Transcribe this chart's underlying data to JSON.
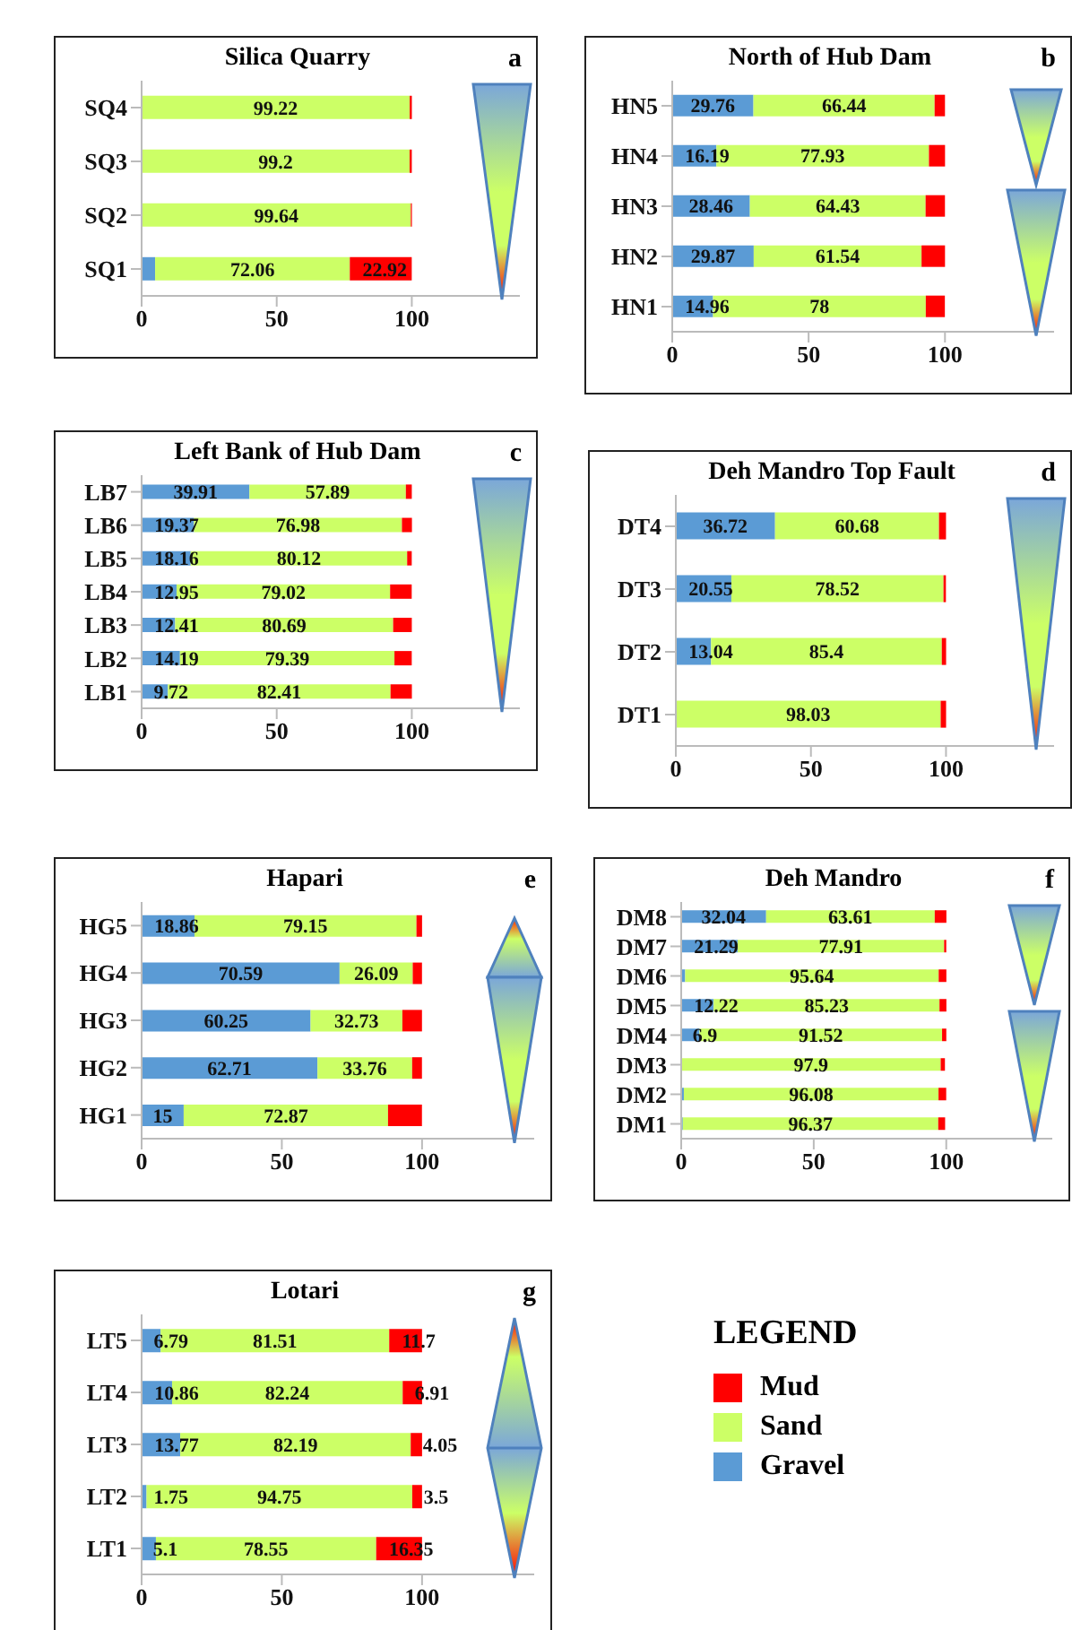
{
  "chart_data": [
    {
      "type": "bar",
      "orientation": "horizontal",
      "stacked": true,
      "title": "Silica Quarry",
      "annotations": [
        "a"
      ],
      "categories": [
        "SQ4",
        "SQ3",
        "SQ2",
        "SQ1"
      ],
      "xlim": [
        0,
        140
      ],
      "xticks": [
        0,
        50,
        100
      ],
      "series": [
        {
          "color": "#5b9bd5",
          "values": [
            0,
            0,
            0,
            5
          ],
          "value_labels": [
            null,
            null,
            null,
            null
          ]
        },
        {
          "color": "#ccff66",
          "values": [
            99.22,
            99.2,
            99.64,
            72.06
          ],
          "value_labels": [
            "99.22",
            "99.2",
            "99.64",
            "72.06"
          ]
        },
        {
          "color": "#ff0000",
          "values": [
            0.8,
            0.8,
            0.4,
            22.92
          ],
          "value_labels": [
            null,
            null,
            null,
            "22.92"
          ]
        }
      ]
    },
    {
      "type": "bar",
      "orientation": "horizontal",
      "stacked": true,
      "title": "North of Hub Dam",
      "annotations": [
        "b"
      ],
      "categories": [
        "HN5",
        "HN4",
        "HN3",
        "HN2",
        "HN1"
      ],
      "xlim": [
        0,
        140
      ],
      "xticks": [
        0,
        50,
        100
      ],
      "series": [
        {
          "color": "#5b9bd5",
          "values": [
            29.76,
            16.19,
            28.46,
            29.87,
            14.96
          ],
          "value_labels": [
            "29.76",
            "16.19",
            "28.46",
            "29.87",
            "14.96"
          ]
        },
        {
          "color": "#ccff66",
          "values": [
            66.44,
            77.93,
            64.43,
            61.54,
            78
          ],
          "value_labels": [
            "66.44",
            "77.93",
            "64.43",
            "61.54",
            "78"
          ]
        },
        {
          "color": "#ff0000",
          "values": [
            3.8,
            5.9,
            7.1,
            8.6,
            7
          ],
          "value_labels": [
            null,
            null,
            null,
            null,
            null
          ]
        }
      ]
    },
    {
      "type": "bar",
      "orientation": "horizontal",
      "stacked": true,
      "title": "Left Bank of Hub Dam",
      "annotations": [
        "c"
      ],
      "categories": [
        "LB7",
        "LB6",
        "LB5",
        "LB4",
        "LB3",
        "LB2",
        "LB1"
      ],
      "xlim": [
        0,
        140
      ],
      "xticks": [
        0,
        50,
        100
      ],
      "series": [
        {
          "color": "#5b9bd5",
          "values": [
            39.91,
            19.37,
            18.16,
            12.95,
            12.41,
            14.19,
            9.72
          ],
          "value_labels": [
            "39.91",
            "19.37",
            "18.16",
            "12.95",
            "12.41",
            "14.19",
            "9.72"
          ]
        },
        {
          "color": "#ccff66",
          "values": [
            57.89,
            76.98,
            80.12,
            79.02,
            80.69,
            79.39,
            82.41
          ],
          "value_labels": [
            "57.89",
            "76.98",
            "80.12",
            "79.02",
            "80.69",
            "79.39",
            "82.41"
          ]
        },
        {
          "color": "#ff0000",
          "values": [
            2.2,
            3.7,
            1.7,
            8,
            6.9,
            6.4,
            7.9
          ],
          "value_labels": [
            null,
            null,
            null,
            null,
            null,
            null,
            null
          ]
        }
      ]
    },
    {
      "type": "bar",
      "orientation": "horizontal",
      "stacked": true,
      "title": "Deh Mandro Top Fault",
      "annotations": [
        "d"
      ],
      "categories": [
        "DT4",
        "DT3",
        "DT2",
        "DT1"
      ],
      "xlim": [
        0,
        140
      ],
      "xticks": [
        0,
        50,
        100
      ],
      "series": [
        {
          "color": "#5b9bd5",
          "values": [
            36.72,
            20.55,
            13.04,
            0
          ],
          "value_labels": [
            "36.72",
            "20.55",
            "13.04",
            null
          ]
        },
        {
          "color": "#ccff66",
          "values": [
            60.68,
            78.52,
            85.4,
            98.03
          ],
          "value_labels": [
            "60.68",
            "78.52",
            "85.4",
            "98.03"
          ]
        },
        {
          "color": "#ff0000",
          "values": [
            2.6,
            0.9,
            1.6,
            2
          ],
          "value_labels": [
            null,
            null,
            null,
            null
          ]
        }
      ]
    },
    {
      "type": "bar",
      "orientation": "horizontal",
      "stacked": true,
      "title": "Hapari",
      "annotations": [
        "e"
      ],
      "categories": [
        "HG5",
        "HG4",
        "HG3",
        "HG2",
        "HG1"
      ],
      "xlim": [
        0,
        140
      ],
      "xticks": [
        0,
        50,
        100
      ],
      "series": [
        {
          "color": "#5b9bd5",
          "values": [
            18.86,
            70.59,
            60.25,
            62.71,
            15
          ],
          "value_labels": [
            "18.86",
            "70.59",
            "60.25",
            "62.71",
            "15"
          ]
        },
        {
          "color": "#ccff66",
          "values": [
            79.15,
            26.09,
            32.73,
            33.76,
            72.87
          ],
          "value_labels": [
            "79.15",
            "26.09",
            "32.73",
            "33.76",
            "72.87"
          ]
        },
        {
          "color": "#ff0000",
          "values": [
            2,
            3.3,
            7,
            3.5,
            12.1
          ],
          "value_labels": [
            null,
            null,
            null,
            null,
            null
          ]
        }
      ]
    },
    {
      "type": "bar",
      "orientation": "horizontal",
      "stacked": true,
      "title": "Deh Mandro",
      "annotations": [
        "f"
      ],
      "categories": [
        "DM8",
        "DM7",
        "DM6",
        "DM5",
        "DM4",
        "DM3",
        "DM2",
        "DM1"
      ],
      "xlim": [
        0,
        140
      ],
      "xticks": [
        0,
        50,
        100
      ],
      "series": [
        {
          "color": "#5b9bd5",
          "values": [
            32.04,
            21.29,
            1.5,
            12.22,
            6.9,
            null,
            1,
            0.6
          ],
          "value_labels": [
            "32.04",
            "21.29",
            null,
            "12.22",
            "6.9",
            null,
            null,
            null
          ]
        },
        {
          "color": "#ccff66",
          "values": [
            63.61,
            77.91,
            95.64,
            85.23,
            91.52,
            97.9,
            96.08,
            96.37
          ],
          "value_labels": [
            "63.61",
            "77.91",
            "95.64",
            "85.23",
            "91.52",
            "97.9",
            "96.08",
            "96.37"
          ]
        },
        {
          "color": "#ff0000",
          "values": [
            4.4,
            0.8,
            2.9,
            2.6,
            1.6,
            1.6,
            2.9,
            2.6
          ],
          "value_labels": [
            null,
            null,
            null,
            null,
            null,
            null,
            null,
            null
          ]
        }
      ]
    },
    {
      "type": "bar",
      "orientation": "horizontal",
      "stacked": true,
      "title": "Lotari",
      "annotations": [
        "g"
      ],
      "categories": [
        "LT5",
        "LT4",
        "LT3",
        "LT2",
        "LT1"
      ],
      "xlim": [
        0,
        140
      ],
      "xticks": [
        0,
        50,
        100
      ],
      "data_labels": true,
      "legend": "right",
      "legend_title": "LEGEND",
      "series": [
        {
          "name": "Gravel",
          "color": "#5b9bd5",
          "values": [
            6.79,
            10.86,
            13.77,
            1.75,
            5.1
          ]
        },
        {
          "name": "Sand",
          "color": "#ccff66",
          "values": [
            81.51,
            82.24,
            82.19,
            94.75,
            78.55
          ]
        },
        {
          "name": "Mud",
          "color": "#ff0000",
          "values": [
            11.7,
            6.91,
            4.05,
            3.5,
            16.35
          ]
        }
      ]
    }
  ]
}
